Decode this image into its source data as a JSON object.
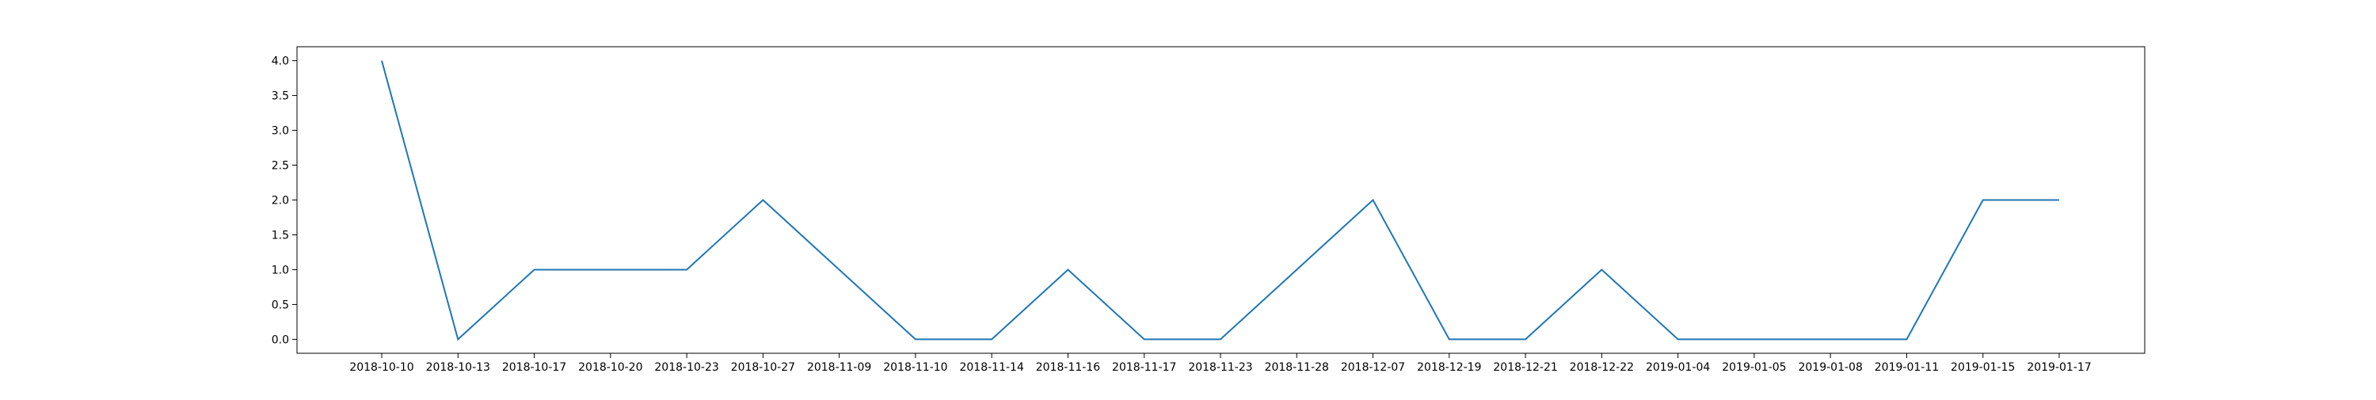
{
  "chart_data": {
    "type": "line",
    "title": "",
    "xlabel": "",
    "ylabel": "",
    "categories": [
      "2018-10-10",
      "2018-10-13",
      "2018-10-17",
      "2018-10-20",
      "2018-10-23",
      "2018-10-27",
      "2018-11-09",
      "2018-11-10",
      "2018-11-14",
      "2018-11-16",
      "2018-11-17",
      "2018-11-23",
      "2018-11-28",
      "2018-12-07",
      "2018-12-19",
      "2018-12-21",
      "2018-12-22",
      "2019-01-04",
      "2019-01-05",
      "2019-01-08",
      "2019-01-11",
      "2019-01-15",
      "2019-01-17"
    ],
    "series": [
      {
        "values": [
          4,
          0,
          1,
          1,
          1,
          2,
          1,
          0,
          0,
          1,
          0,
          0,
          1,
          2,
          0,
          0,
          1,
          0,
          0,
          0,
          0,
          2,
          2
        ],
        "color": "#1f77b4"
      }
    ],
    "yticks": [
      "0.0",
      "0.5",
      "1.0",
      "1.5",
      "2.0",
      "2.5",
      "3.0",
      "3.5",
      "4.0"
    ],
    "ylim": [
      -0.2,
      4.2
    ],
    "grid": false,
    "legend": "none"
  }
}
